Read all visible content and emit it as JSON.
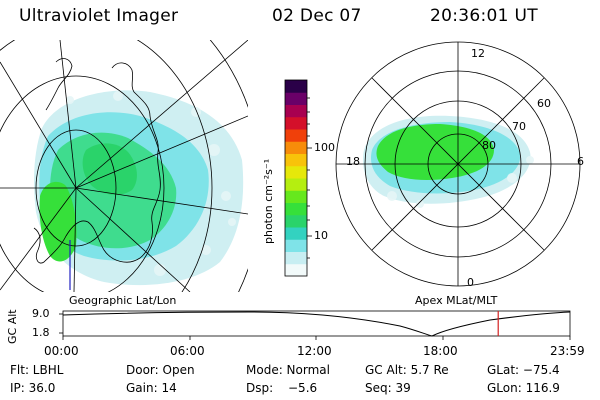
{
  "header": {
    "title": "Ultraviolet Imager",
    "date": "02 Dec 07",
    "time": "20:36:01 UT"
  },
  "left_map": {
    "caption": "Geographic Lat/Lon"
  },
  "right_map": {
    "caption": "Apex MLat/MLT",
    "mlt_labels": [
      "12",
      "18",
      "6",
      "0"
    ],
    "mlat_labels": [
      "60",
      "70",
      "80"
    ]
  },
  "colorbar": {
    "unit_label": "photon cm⁻²s⁻¹",
    "tick_labels": [
      "100",
      "10"
    ],
    "colors": [
      "#f2fafa",
      "#c8eef2",
      "#7fe3e8",
      "#33d2c0",
      "#2ad36a",
      "#36e03a",
      "#66e81d",
      "#b5ee10",
      "#e6e80a",
      "#f8c30a",
      "#f78c0a",
      "#f0400a",
      "#d4102a",
      "#a80050",
      "#6a0068",
      "#2a0048"
    ]
  },
  "timeline": {
    "axis_label": "GC Alt",
    "y_ticks": [
      "9.0",
      "1.8"
    ],
    "x_ticks": [
      "00:00",
      "06:00",
      "12:00",
      "18:00",
      "23:59"
    ],
    "current_marker_fraction": 0.8583,
    "marker_color": "#d42020"
  },
  "info": {
    "flt": "Flt: LBHL",
    "door": "Door: Open",
    "mode": "Mode: Normal",
    "gc_alt": "GC Alt: 5.7 Re",
    "glat": "GLat: −75.4",
    "ip": "IP: 36.0",
    "gain": "Gain: 14",
    "dsp_label": "Dsp:",
    "dsp_value": "−5.6",
    "seq": "Seq: 39",
    "glon": "GLon: 116.9"
  }
}
